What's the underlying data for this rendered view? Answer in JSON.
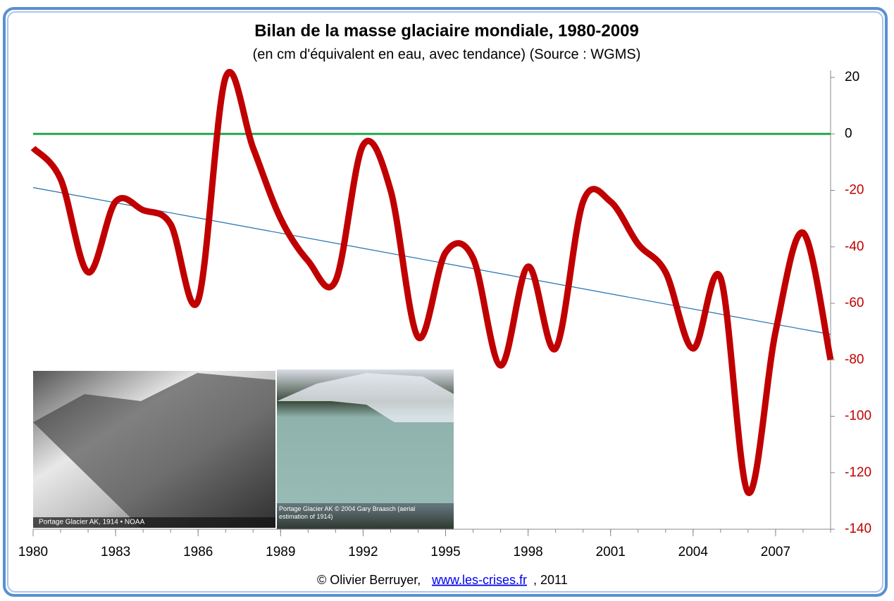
{
  "chart_data": {
    "type": "line",
    "title": "Bilan de la masse glaciaire mondiale, 1980-2009",
    "subtitle": "(en cm d'équivalent en eau, avec tendance) (Source : WGMS)",
    "x": [
      1980,
      1981,
      1982,
      1983,
      1984,
      1985,
      1986,
      1987,
      1988,
      1989,
      1990,
      1991,
      1992,
      1993,
      1994,
      1995,
      1996,
      1997,
      1998,
      1999,
      2000,
      2001,
      2002,
      2003,
      2004,
      2005,
      2006,
      2007,
      2008,
      2009
    ],
    "series": [
      {
        "color": "#c00000",
        "values": [
          -5,
          -16,
          -49,
          -24,
          -27,
          -32,
          -59,
          20,
          -5,
          -30,
          -45,
          -52,
          -4,
          -20,
          -72,
          -42,
          -44,
          -82,
          -47,
          -76,
          -24,
          -24,
          -39,
          -49,
          -76,
          -51,
          -127,
          -70,
          -35,
          -80
        ]
      }
    ],
    "trend": {
      "color": "#1f6fb0",
      "x": [
        1980,
        2009
      ],
      "values": [
        -19,
        -71
      ]
    },
    "reference_line": {
      "value": 0,
      "color": "#22a84a"
    },
    "xlim": [
      1980,
      2009
    ],
    "xticks": [
      1980,
      1983,
      1986,
      1989,
      1992,
      1995,
      1998,
      2001,
      2004,
      2007
    ],
    "ylim": [
      -140,
      20
    ],
    "yticks": [
      20,
      0,
      -20,
      -40,
      -60,
      -80,
      -100,
      -120,
      -140
    ],
    "y_axis_side": "right",
    "tick_color": "#000000",
    "negative_tick_color": "#c00000",
    "images": [
      {
        "caption": "Portage Glacier AK, 1914 • NOAA"
      },
      {
        "caption": "Portage Glacier AK © 2004 Gary Braasch (aerial estimation of 1914)"
      }
    ],
    "footer": {
      "author": "© Olivier Berruyer,",
      "link": "www.les-crises.fr",
      "year": ", 2011"
    }
  }
}
